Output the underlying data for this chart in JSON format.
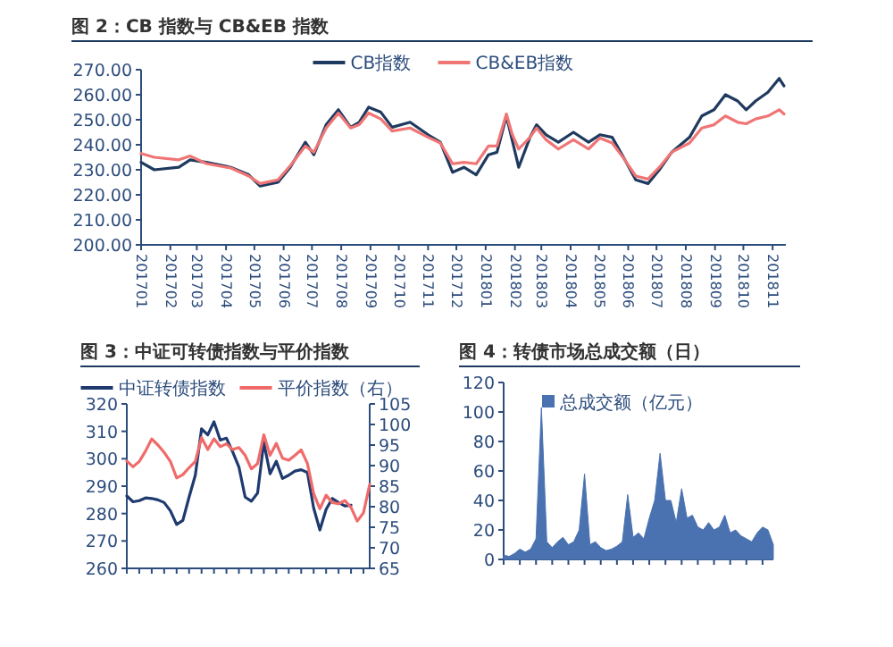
{
  "chart_data": [
    {
      "type": "line",
      "title": "图 2：CB 指数与 CB&EB 指数",
      "legend": "top",
      "x": [
        "2017-01-01",
        "2017-01-15",
        "2017-02-10",
        "2017-02-22",
        "2017-03-11",
        "2017-04-06",
        "2017-04-25",
        "2017-05-07",
        "2017-05-26",
        "2017-06-08",
        "2017-06-24",
        "2017-07-03",
        "2017-07-16",
        "2017-07-29",
        "2017-08-11",
        "2017-08-20",
        "2017-08-30",
        "2017-09-12",
        "2017-09-24",
        "2017-10-13",
        "2017-11-01",
        "2017-11-14",
        "2017-11-27",
        "2017-12-09",
        "2017-12-22",
        "2018-01-04",
        "2018-01-13",
        "2018-01-23",
        "2018-01-29",
        "2018-02-05",
        "2018-02-17",
        "2018-02-24",
        "2018-03-06",
        "2018-03-19",
        "2018-04-04",
        "2018-04-20",
        "2018-05-02",
        "2018-05-15",
        "2018-05-27",
        "2018-06-09",
        "2018-06-22",
        "2018-07-04",
        "2018-07-17",
        "2018-08-05",
        "2018-08-18",
        "2018-08-31",
        "2018-09-12",
        "2018-09-25",
        "2018-10-04",
        "2018-10-14",
        "2018-10-27",
        "2018-11-08",
        "2018-11-13"
      ],
      "series": [
        {
          "name": "CB指数",
          "color": "#1f3a5f",
          "values": [
            233,
            230,
            231,
            234,
            233,
            231,
            228,
            223.5,
            225,
            231,
            241,
            236,
            248,
            254,
            247,
            249,
            255,
            253,
            247,
            249,
            244,
            241,
            229,
            231,
            228,
            236,
            237,
            251.5,
            242,
            231,
            243,
            248,
            244,
            241,
            245,
            241,
            244,
            243,
            235,
            226,
            224.5,
            230,
            237,
            243,
            251.5,
            254,
            260,
            257.5,
            254,
            257.5,
            261,
            266.5,
            263.5
          ]
        },
        {
          "name": "CB&EB指数",
          "color": "#f07575",
          "values": [
            236.5,
            235,
            234,
            235.5,
            232.5,
            230.7,
            227.5,
            224.5,
            226,
            231.6,
            239.5,
            237,
            246.7,
            252.7,
            246.7,
            248,
            252.7,
            250.3,
            245.5,
            246.7,
            243,
            240.7,
            232.4,
            233,
            232.4,
            239.5,
            239.5,
            252.3,
            244.3,
            238.3,
            243,
            246.7,
            242,
            238.3,
            242,
            238.3,
            242.7,
            240.7,
            234.7,
            227.5,
            226.3,
            231,
            237,
            240.7,
            246.7,
            248,
            251.5,
            249,
            248.4,
            250.3,
            251.5,
            254,
            252.3
          ]
        }
      ],
      "xlim": [
        "2017-01-01",
        "2018-11-15"
      ],
      "xticks": [
        {
          "value": "2017-01",
          "label": "201701"
        },
        {
          "value": "2017-02",
          "label": "201702"
        },
        {
          "value": "2017-03",
          "label": "201703"
        },
        {
          "value": "2017-04",
          "label": "201704"
        },
        {
          "value": "2017-05",
          "label": "201705"
        },
        {
          "value": "2017-06",
          "label": "201706"
        },
        {
          "value": "2017-07",
          "label": "201707"
        },
        {
          "value": "2017-08",
          "label": "201708"
        },
        {
          "value": "2017-09",
          "label": "201709"
        },
        {
          "value": "2017-10",
          "label": "201710"
        },
        {
          "value": "2017-11",
          "label": "201711"
        },
        {
          "value": "2017-12",
          "label": "201712"
        },
        {
          "value": "2018-01",
          "label": "201801"
        },
        {
          "value": "2018-02",
          "label": "201802"
        },
        {
          "value": "2018-03",
          "label": "201803"
        },
        {
          "value": "2018-04",
          "label": "201804"
        },
        {
          "value": "2018-05",
          "label": "201805"
        },
        {
          "value": "2018-06",
          "label": "201806"
        },
        {
          "value": "2018-07",
          "label": "201807"
        },
        {
          "value": "2018-08",
          "label": "201808"
        },
        {
          "value": "2018-09",
          "label": "201809"
        },
        {
          "value": "2018-10",
          "label": "201810"
        },
        {
          "value": "2018-11",
          "label": "201811"
        }
      ],
      "ylim": [
        200,
        270
      ],
      "yticks": [
        {
          "value": 200,
          "label": "200.00"
        },
        {
          "value": 210,
          "label": "210.00"
        },
        {
          "value": 220,
          "label": "220.00"
        },
        {
          "value": 230,
          "label": "230.00"
        },
        {
          "value": 240,
          "label": "240.00"
        },
        {
          "value": 250,
          "label": "250.00"
        },
        {
          "value": 260,
          "label": "260.00"
        },
        {
          "value": 270,
          "label": "270.00"
        }
      ]
    },
    {
      "type": "line",
      "title": "图 3：中证可转债指数与平价指数",
      "legend": "top",
      "tick_labels": "y",
      "categories": [
        null,
        null,
        null,
        null,
        null,
        null,
        null,
        null,
        null,
        null,
        null,
        null,
        null,
        null,
        null,
        null,
        null,
        null,
        null,
        null,
        null,
        null,
        null,
        null,
        null,
        null,
        null,
        null,
        null,
        null,
        null,
        null,
        null,
        null,
        null,
        null,
        null,
        null,
        null,
        null
      ],
      "series": [
        {
          "name": "中证转债指数",
          "color": "#1f3a6f",
          "values": [
            286.4,
            284.3,
            284.7,
            285.7,
            285.5,
            285,
            284,
            281,
            276,
            277.5,
            286,
            294,
            310.9,
            308.7,
            313.5,
            306.8,
            307.5,
            302.5,
            297,
            286,
            284.5,
            287.5,
            306,
            294.5,
            299.1,
            292.8,
            294,
            295.5,
            296,
            295,
            282,
            274,
            281.5,
            285.5,
            284,
            282.8,
            283,
            null,
            null,
            null
          ]
        },
        {
          "name": "平价指数（右）",
          "color": "#f06a6a",
          "axis": "y2",
          "values": [
            91.1,
            89.7,
            91,
            93.5,
            96.5,
            95,
            93.2,
            91,
            87,
            87.8,
            89.5,
            91,
            96.8,
            93.9,
            96.5,
            94.6,
            95.3,
            93.9,
            94.4,
            92.5,
            89.2,
            90.5,
            97.5,
            92.5,
            95.4,
            91.8,
            91.3,
            92.5,
            93.8,
            90.5,
            83.2,
            79.5,
            82.8,
            81,
            80.7,
            81.5,
            79.8,
            76.5,
            78.5,
            85.4
          ]
        }
      ],
      "ylim": [
        260,
        320
      ],
      "yticks": [
        260,
        270,
        280,
        290,
        300,
        310,
        320
      ],
      "y2lim": [
        65,
        105
      ],
      "y2ticks": [
        65,
        70,
        75,
        80,
        85,
        90,
        95,
        100,
        105
      ]
    },
    {
      "type": "area",
      "title": "图 4：转债市场总成交额（日）",
      "legend": "top",
      "tick_labels": "y",
      "categories": [
        null,
        null,
        null,
        null,
        null,
        null,
        null,
        null,
        null,
        null,
        null,
        null,
        null,
        null,
        null,
        null,
        null,
        null,
        null,
        null,
        null,
        null,
        null,
        null,
        null,
        null,
        null,
        null,
        null,
        null,
        null,
        null,
        null,
        null,
        null,
        null,
        null,
        null,
        null,
        null,
        null,
        null,
        null,
        null,
        null,
        null,
        null,
        null,
        null,
        null,
        null
      ],
      "series": [
        {
          "name": "总成交额（亿元）",
          "color": "#4a72b0",
          "values": [
            3,
            2,
            4,
            7,
            5,
            7,
            14,
            103,
            12,
            8,
            12,
            15,
            10,
            12,
            20,
            58,
            10,
            12,
            8,
            6,
            7,
            9,
            12,
            44,
            15,
            18,
            14,
            28,
            40,
            72,
            40,
            40,
            25,
            48,
            28,
            30,
            22,
            20,
            25,
            20,
            22,
            30,
            18,
            20,
            16,
            14,
            12,
            18,
            22,
            20,
            10
          ]
        }
      ],
      "ylim": [
        0,
        120
      ],
      "yticks": [
        0,
        20,
        40,
        60,
        80,
        100,
        120
      ]
    }
  ]
}
